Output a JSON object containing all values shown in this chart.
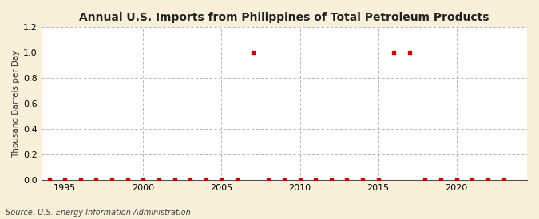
{
  "title": "Annual U.S. Imports from Philippines of Total Petroleum Products",
  "ylabel": "Thousand Barrels per Day",
  "source": "Source: U.S. Energy Information Administration",
  "background_color": "#faefd8",
  "plot_background_color": "#ffffff",
  "years": [
    1994,
    1995,
    1996,
    1997,
    1998,
    1999,
    2000,
    2001,
    2002,
    2003,
    2004,
    2005,
    2006,
    2007,
    2008,
    2009,
    2010,
    2011,
    2012,
    2013,
    2014,
    2015,
    2016,
    2017,
    2018,
    2019,
    2020,
    2021,
    2022,
    2023
  ],
  "values": [
    0,
    0,
    0,
    0,
    0,
    0,
    0,
    0,
    0,
    0,
    0,
    0,
    0,
    1.0,
    0,
    0,
    0,
    0,
    0,
    0,
    0,
    0,
    1.0,
    1.0,
    0,
    0,
    0,
    0,
    0,
    0
  ],
  "marker_color": "#cc0000",
  "marker_size": 3.5,
  "grid_color": "#aaaaaa",
  "grid_style": "--",
  "xlim": [
    1993.5,
    2024.5
  ],
  "ylim": [
    0.0,
    1.2
  ],
  "yticks": [
    0.0,
    0.2,
    0.4,
    0.6,
    0.8,
    1.0,
    1.2
  ],
  "xticks": [
    1995,
    2000,
    2005,
    2010,
    2015,
    2020
  ],
  "title_fontsize": 10,
  "ylabel_fontsize": 7.5,
  "tick_labelsize": 8,
  "source_fontsize": 7
}
